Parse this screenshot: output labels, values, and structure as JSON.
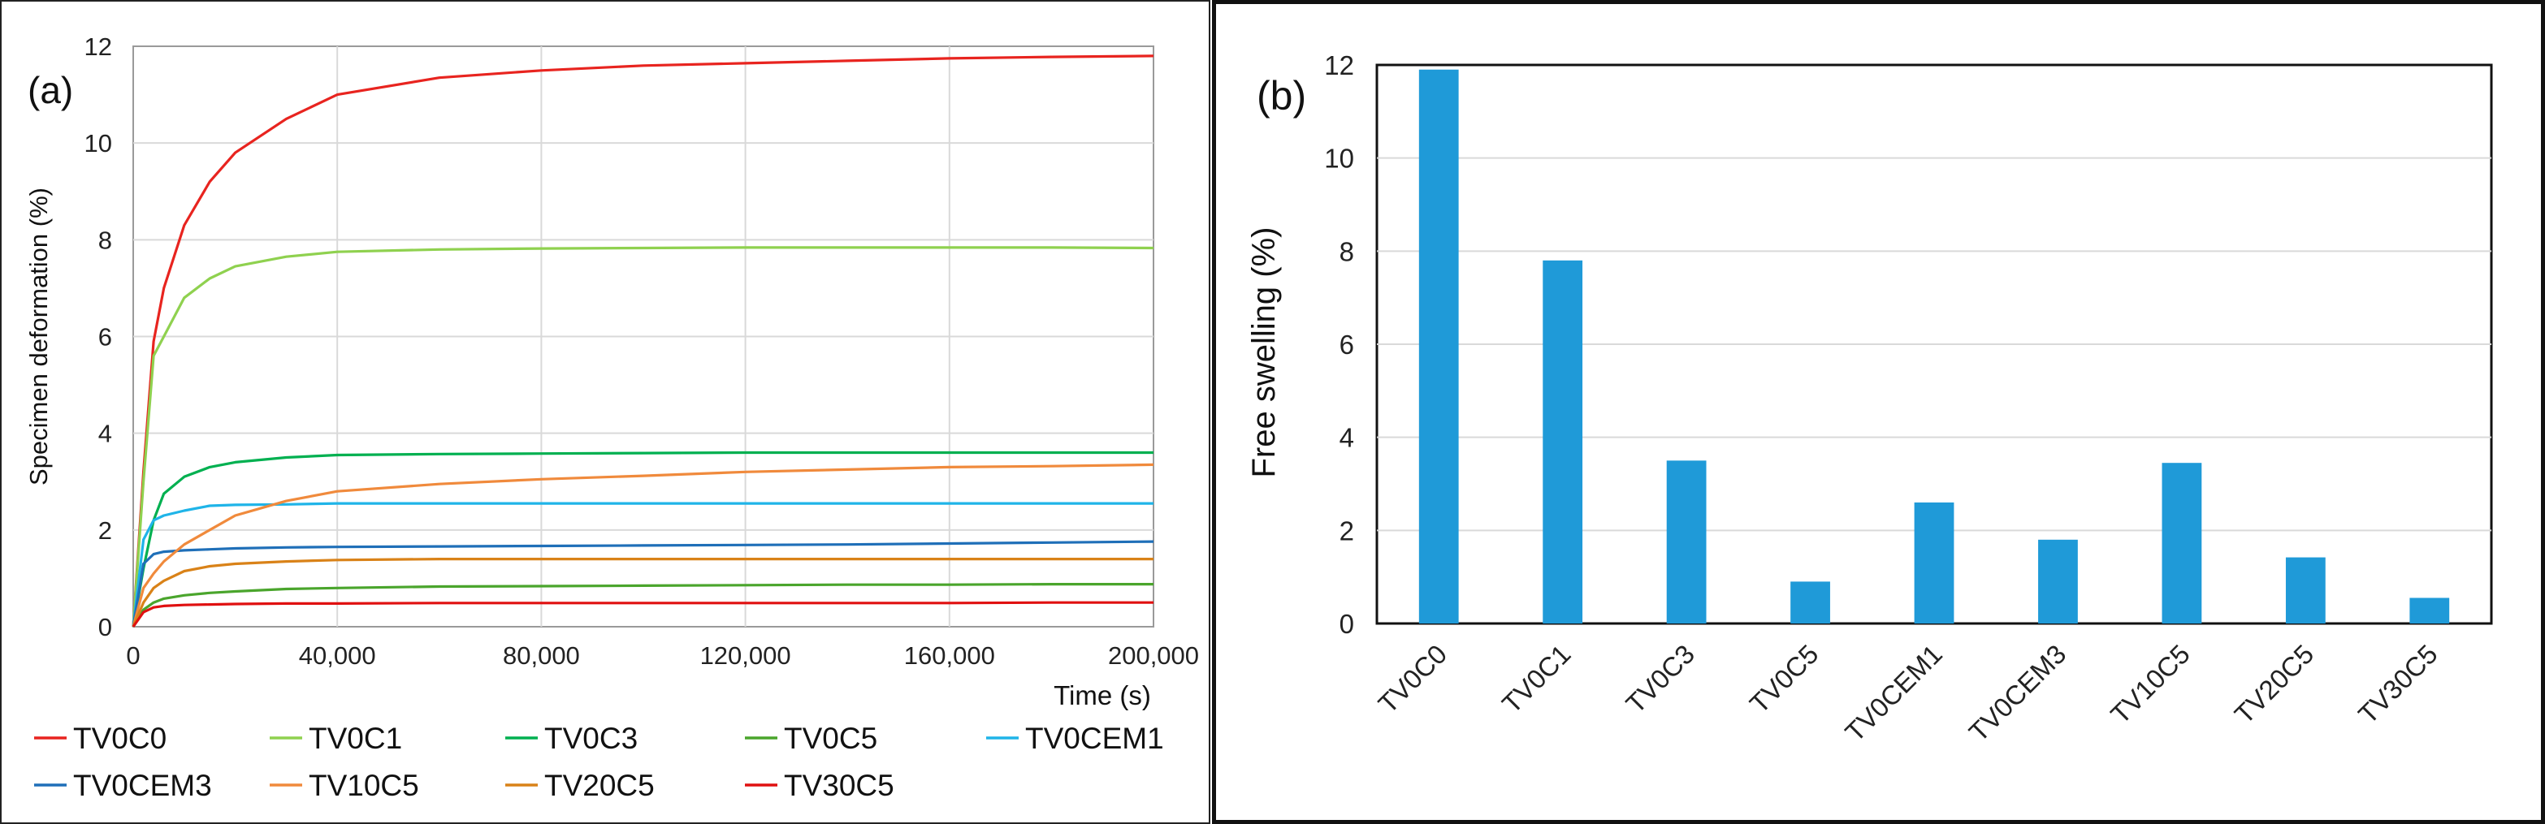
{
  "chart_data": [
    {
      "type": "line",
      "panel_label": "(a)",
      "xlabel": "Time (s)",
      "ylabel": "Specimen deformation (%)",
      "xlim": [
        0,
        200000
      ],
      "ylim": [
        0,
        12
      ],
      "xticks": [
        "0",
        "40,000",
        "80,000",
        "120,000",
        "160,000",
        "200,000"
      ],
      "yticks": [
        "0",
        "2",
        "4",
        "6",
        "8",
        "10",
        "12"
      ],
      "grid": true,
      "legend_position": "bottom",
      "series": [
        {
          "name": "TV0C0",
          "color": "#e8241f",
          "x": [
            0,
            2000,
            4000,
            6000,
            10000,
            15000,
            20000,
            30000,
            40000,
            60000,
            80000,
            100000,
            120000,
            140000,
            160000,
            180000,
            200000
          ],
          "y": [
            0,
            3.2,
            5.9,
            7.0,
            8.3,
            9.2,
            9.8,
            10.5,
            11.0,
            11.35,
            11.5,
            11.6,
            11.65,
            11.7,
            11.75,
            11.78,
            11.8
          ]
        },
        {
          "name": "TV0C1",
          "color": "#8fd14f",
          "x": [
            0,
            2000,
            4000,
            6000,
            10000,
            15000,
            20000,
            30000,
            40000,
            60000,
            80000,
            100000,
            120000,
            140000,
            160000,
            180000,
            200000
          ],
          "y": [
            0,
            3.0,
            5.6,
            6.0,
            6.8,
            7.2,
            7.45,
            7.65,
            7.75,
            7.8,
            7.82,
            7.83,
            7.84,
            7.84,
            7.84,
            7.84,
            7.83
          ]
        },
        {
          "name": "TV0C3",
          "color": "#00b050",
          "x": [
            0,
            2000,
            4000,
            6000,
            10000,
            15000,
            20000,
            30000,
            40000,
            60000,
            80000,
            100000,
            120000,
            140000,
            160000,
            180000,
            200000
          ],
          "y": [
            0,
            1.2,
            2.2,
            2.75,
            3.1,
            3.3,
            3.4,
            3.5,
            3.55,
            3.57,
            3.58,
            3.59,
            3.6,
            3.6,
            3.6,
            3.6,
            3.6
          ]
        },
        {
          "name": "TV0C5",
          "color": "#4aa52c",
          "x": [
            0,
            2000,
            4000,
            6000,
            10000,
            15000,
            20000,
            30000,
            40000,
            60000,
            80000,
            100000,
            120000,
            140000,
            160000,
            180000,
            200000
          ],
          "y": [
            0,
            0.35,
            0.5,
            0.58,
            0.65,
            0.7,
            0.73,
            0.78,
            0.8,
            0.83,
            0.84,
            0.85,
            0.86,
            0.87,
            0.87,
            0.88,
            0.88
          ]
        },
        {
          "name": "TV0CEM1",
          "color": "#1fb4e8",
          "x": [
            0,
            2000,
            4000,
            6000,
            10000,
            15000,
            20000,
            30000,
            40000,
            60000,
            80000,
            100000,
            120000,
            140000,
            160000,
            180000,
            200000
          ],
          "y": [
            0,
            1.8,
            2.2,
            2.3,
            2.4,
            2.5,
            2.52,
            2.53,
            2.55,
            2.55,
            2.55,
            2.55,
            2.55,
            2.55,
            2.55,
            2.55,
            2.55
          ]
        },
        {
          "name": "TV0CEM3",
          "color": "#1f6fb8",
          "x": [
            0,
            2000,
            4000,
            6000,
            10000,
            15000,
            20000,
            30000,
            40000,
            60000,
            80000,
            100000,
            120000,
            140000,
            160000,
            180000,
            200000
          ],
          "y": [
            0,
            1.3,
            1.5,
            1.55,
            1.58,
            1.6,
            1.62,
            1.64,
            1.65,
            1.66,
            1.67,
            1.68,
            1.69,
            1.7,
            1.72,
            1.74,
            1.76
          ]
        },
        {
          "name": "TV10C5",
          "color": "#f08a3c",
          "x": [
            0,
            2000,
            4000,
            6000,
            10000,
            15000,
            20000,
            30000,
            40000,
            60000,
            80000,
            100000,
            120000,
            140000,
            160000,
            180000,
            200000
          ],
          "y": [
            0,
            0.8,
            1.1,
            1.35,
            1.7,
            2.0,
            2.3,
            2.6,
            2.8,
            2.95,
            3.05,
            3.12,
            3.2,
            3.25,
            3.3,
            3.32,
            3.35
          ]
        },
        {
          "name": "TV20C5",
          "color": "#d98218",
          "x": [
            0,
            2000,
            4000,
            6000,
            10000,
            15000,
            20000,
            30000,
            40000,
            60000,
            80000,
            100000,
            120000,
            140000,
            160000,
            180000,
            200000
          ],
          "y": [
            0,
            0.5,
            0.8,
            0.95,
            1.15,
            1.25,
            1.3,
            1.35,
            1.38,
            1.4,
            1.4,
            1.4,
            1.4,
            1.4,
            1.4,
            1.4,
            1.4
          ]
        },
        {
          "name": "TV30C5",
          "color": "#e01010",
          "x": [
            0,
            2000,
            4000,
            6000,
            10000,
            15000,
            20000,
            30000,
            40000,
            60000,
            80000,
            100000,
            120000,
            140000,
            160000,
            180000,
            200000
          ],
          "y": [
            0,
            0.3,
            0.4,
            0.43,
            0.45,
            0.46,
            0.47,
            0.48,
            0.48,
            0.49,
            0.49,
            0.49,
            0.49,
            0.49,
            0.49,
            0.5,
            0.5
          ]
        }
      ]
    },
    {
      "type": "bar",
      "panel_label": "(b)",
      "xlabel": "",
      "ylabel": "Free swelling (%)",
      "ylim": [
        0,
        12
      ],
      "yticks": [
        "0",
        "2",
        "4",
        "6",
        "8",
        "10",
        "12"
      ],
      "grid": true,
      "bar_color": "#1f9ad8",
      "categories": [
        "TV0C0",
        "TV0C1",
        "TV0C3",
        "TV0C5",
        "TV0CEM1",
        "TV0CEM3",
        "TV10C5",
        "TV20C5",
        "TV30C5"
      ],
      "values": [
        11.9,
        7.8,
        3.5,
        0.9,
        2.6,
        1.8,
        3.45,
        1.42,
        0.55
      ]
    }
  ]
}
